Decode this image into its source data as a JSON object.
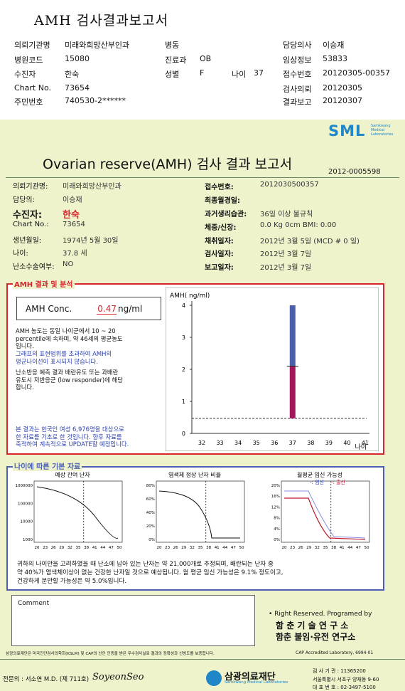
{
  "title": "AMH 검사결과보고서",
  "header": {
    "inst_label": "의뢰기관명",
    "inst": "미래와희망산부인과",
    "ward_label": "병동",
    "doctor_label": "담당의사",
    "doctor": "이승재",
    "code_label": "병원코드",
    "code": "15080",
    "dept_label": "진료과",
    "dept": "OB",
    "clinical_label": "임상정보",
    "clinical": "53833",
    "patient_label": "수진자",
    "patient": "한숙",
    "sex_label": "성별",
    "sex": "F",
    "age_label": "나이",
    "age": "37",
    "receipt_label": "접수번호",
    "receipt": "20120305-00357",
    "chart_label": "Chart No.",
    "chart": "73654",
    "req_label": "검사의뢰",
    "req": "20120305",
    "id_label": "주민번호",
    "id": "740530-2******",
    "report_label": "결과보고",
    "report": "20120307"
  },
  "report": {
    "logo": "SML",
    "logo_sub": "Samkwang Medical Laboratories",
    "title": "Ovarian reserve(AMH) 검사 결과 보고서",
    "doc_no": "2012-0005598",
    "left": [
      {
        "k": "의뢰기관명:",
        "v": "미래와희망산부인과"
      },
      {
        "k": "담당의:",
        "v": "이승재"
      },
      {
        "k": "수진자:",
        "v": "한숙"
      },
      {
        "k": "Chart No.:",
        "v": "73654"
      },
      {
        "k": "생년월일:",
        "v": "1974년 5월 30일"
      },
      {
        "k": "나이:",
        "v": "37.8 세"
      },
      {
        "k": "난소수술여부:",
        "v": "NO"
      }
    ],
    "right": [
      {
        "k": "접수번호:",
        "v": "2012030500357"
      },
      {
        "k": "최종월경일:",
        "v": ""
      },
      {
        "k": "과거생리습관:",
        "v": "36일 이상 불규칙"
      },
      {
        "k": "체중/신장:",
        "v": "0.0 Kg        0cm     BMI:    0.00"
      },
      {
        "k": "채취일자:",
        "v": "2012년 3월 5일     (MCD # 0 일)"
      },
      {
        "k": "검사일자:",
        "v": "2012년 3월 7일"
      },
      {
        "k": "보고일자:",
        "v": "2012년 3월 7일"
      }
    ]
  },
  "result": {
    "legend": "AMH 결과 및 분석",
    "conc_label": "AMH Conc.",
    "conc_value": "0.47",
    "conc_unit": "ng/ml",
    "note1": [
      "AMH 농도는 동일 나이군에서   10 ~ 20",
      "percentile에 속하며, 약  46세의 평균농도",
      "입니다."
    ],
    "note2": [
      "그래프의 표현범위를 초과하여 AMH의",
      "평균나이선이 표시되지 않습니다."
    ],
    "note3": [
      "난소반응 예측 결과 배란유도 또는 과배란",
      "유도시 저반응군 (low responder)에 해당",
      "합니다."
    ],
    "note4": [
      "본 결과는 한국인 여성 6,976명을 대상으로",
      "한 자료를 기초로 한 것입니다. 향후 자료를",
      "축적하여 계속적으로 UPDATE할 예정입니다."
    ]
  },
  "chart_data": [
    {
      "type": "bar",
      "ylabel": "AMH( ng/ml)",
      "xlabel": "나이",
      "x_ticks": [
        "32",
        "33",
        "34",
        "35",
        "36",
        "37",
        "38",
        "39",
        "40",
        "41"
      ],
      "y_ticks": [
        "0",
        "1",
        "2",
        "3",
        "4"
      ],
      "ylim": [
        0,
        4
      ],
      "bar_age": "37",
      "upper_range": [
        2.1,
        4.0
      ],
      "lower_range": [
        0.47,
        2.1
      ],
      "patient_value": 0.47,
      "upper_color": "#4a5fa8",
      "lower_color": "#a3185a"
    },
    {
      "type": "line",
      "title": "예상 잔여 난자",
      "y_ticks": [
        "1000000",
        "100000",
        "10000",
        "1000"
      ],
      "x_ticks": [
        "20",
        "23",
        "26",
        "29",
        "32",
        "35",
        "38",
        "41",
        "44",
        "47",
        "50"
      ]
    },
    {
      "type": "line",
      "title": "염색체 정상 난자 비율",
      "y_ticks": [
        "80%",
        "60%",
        "40%",
        "20%",
        "0%"
      ],
      "x_ticks": [
        "20",
        "23",
        "26",
        "29",
        "32",
        "35",
        "38",
        "41",
        "44",
        "47",
        "50"
      ]
    },
    {
      "type": "line",
      "title": "월평균 임신 가능성",
      "legend": [
        "임신",
        "출산"
      ],
      "y_ticks": [
        "20%",
        "16%",
        "12%",
        "8%",
        "4%",
        "0%"
      ],
      "x_ticks": [
        "20",
        "23",
        "26",
        "29",
        "32",
        "35",
        "38",
        "41",
        "44",
        "47",
        "50"
      ]
    }
  ],
  "age": {
    "legend": "나이에 따른 기본 자료",
    "summary": [
      "귀하의 나이만을 고려하였을 때 난소에 남아 있는 난자는 약   21,000개로 추정되며, 배란되는 난자 중",
      "약  40%가 염색체이상이 없는 건강한 난자일 것으로 예상됩니다. 월 평균 임신 가능성은  9.1% 정도이고,",
      "건강하게 분만할 가능성은 약  5.0%입니다."
    ]
  },
  "comment_label": "Comment",
  "footer": {
    "rights": "• Right Reserved. Programed by",
    "inst1": "함 춘  기 술  연 구 소",
    "inst2": "함춘 불임·유전 연구소",
    "cert": "삼광의료재단은 미국진단검사의학회(KSLM) 및 CAP의 신인 인증을 받은 우수검사실로 결과의 정확성과 신빙도를 보증합니다.",
    "cap": "CAP  Accredited  Laboratory,  6994-01",
    "specialist": "전문의 : 서소연 M.D. (제 711호)",
    "signature": "SoyeonSeo",
    "foundation": "삼광의료재단",
    "foundation_sub": "Samkwang Medical Laboratories",
    "lic": "검 사 기 관 : 11365200",
    "addr": "서울특별시 서초구 양재동 9-60",
    "tel": "대 표 번 호 : 02-3497-5100"
  }
}
